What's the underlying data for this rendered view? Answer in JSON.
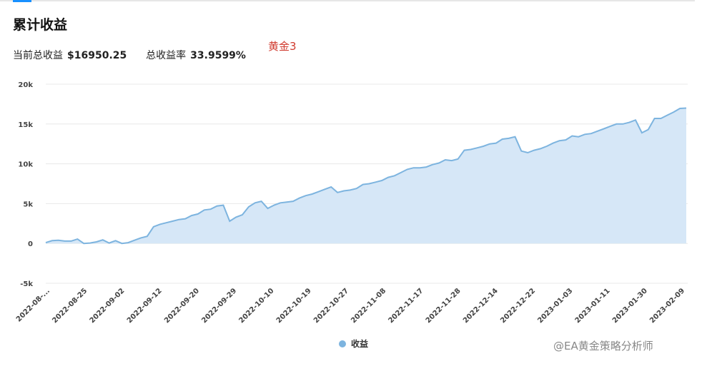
{
  "title": "累计收益",
  "summary": {
    "current_label": "当前总收益",
    "current_value": "$16950.25",
    "rate_label": "总收益率",
    "rate_value": "33.9599%"
  },
  "annotation": "黄金3",
  "watermark": "@EA黄金策略分析师",
  "colors": {
    "line": "#7db4df",
    "fill": "#d6e7f7",
    "accent": "#1890ff",
    "annotation": "#d03a2e"
  },
  "chart_data": {
    "type": "area",
    "title": "",
    "xlabel": "",
    "ylabel": "",
    "ylim": [
      -5000,
      20000
    ],
    "yticks": [
      -5000,
      0,
      5000,
      10000,
      15000,
      20000
    ],
    "ytick_labels": [
      "-5k",
      "0",
      "5k",
      "10k",
      "15k",
      "20k"
    ],
    "grid": "horizontal",
    "legend": "bottom-center",
    "x_tick_labels": [
      "2022-08-...",
      "2022-08-25",
      "2022-09-02",
      "2022-09-12",
      "2022-09-20",
      "2022-09-29",
      "2022-10-10",
      "2022-10-19",
      "2022-10-27",
      "2022-11-08",
      "2022-11-17",
      "2022-11-28",
      "2022-12-14",
      "2022-12-22",
      "2023-01-03",
      "2023-01-11",
      "2023-01-30",
      "2023-02-09"
    ],
    "series": [
      {
        "name": "收益",
        "values": [
          100,
          350,
          400,
          300,
          300,
          550,
          0,
          50,
          200,
          450,
          50,
          350,
          0,
          100,
          400,
          700,
          900,
          2100,
          2400,
          2600,
          2800,
          3000,
          3100,
          3500,
          3700,
          4200,
          4300,
          4700,
          4800,
          2800,
          3300,
          3600,
          4600,
          5100,
          5300,
          4400,
          4800,
          5100,
          5200,
          5300,
          5700,
          6000,
          6200,
          6500,
          6800,
          7100,
          6400,
          6600,
          6700,
          6900,
          7400,
          7500,
          7700,
          7900,
          8300,
          8500,
          8900,
          9300,
          9500,
          9500,
          9600,
          9900,
          10100,
          10500,
          10400,
          10600,
          11700,
          11800,
          12000,
          12200,
          12500,
          12600,
          13100,
          13200,
          13400,
          11600,
          11400,
          11700,
          11900,
          12200,
          12600,
          12900,
          13000,
          13500,
          13400,
          13700,
          13800,
          14100,
          14400,
          14700,
          15000,
          15000,
          15200,
          15500,
          13900,
          14300,
          15700,
          15700,
          16100,
          16500,
          16950,
          17000
        ]
      }
    ]
  }
}
